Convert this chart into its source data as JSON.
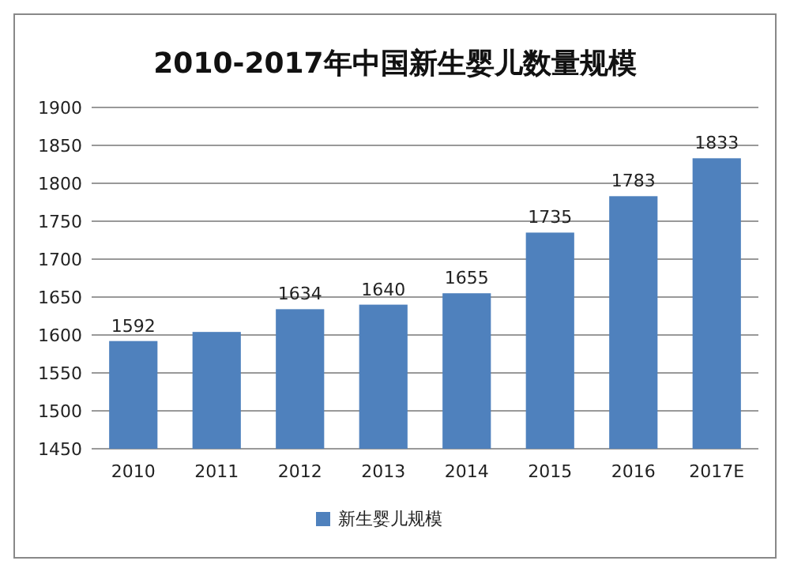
{
  "chart_data": {
    "type": "bar",
    "title": "2010-2017年中国新生婴儿数量规模",
    "categories": [
      "2010",
      "2011",
      "2012",
      "2013",
      "2014",
      "2015",
      "2016",
      "2017E"
    ],
    "series": [
      {
        "name": "新生婴儿规模",
        "color": "#4f81bd",
        "values": [
          1592,
          1604,
          1634,
          1640,
          1655,
          1735,
          1783,
          1833
        ],
        "value_labels": [
          "1592",
          null,
          "1634",
          "1640",
          "1655",
          "1735",
          "1783",
          "1833"
        ]
      }
    ],
    "ylim": [
      1450,
      1900
    ],
    "yticks": [
      1450,
      1500,
      1550,
      1600,
      1650,
      1700,
      1750,
      1800,
      1850,
      1900
    ],
    "grid": "y",
    "legend": "bottom"
  }
}
